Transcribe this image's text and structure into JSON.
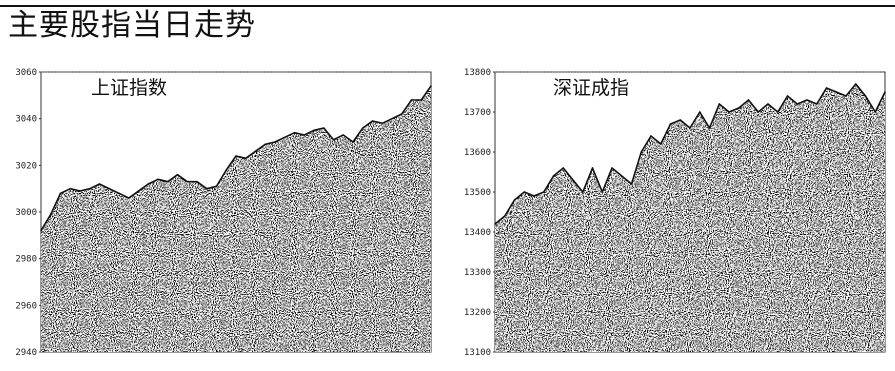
{
  "page": {
    "title": "主要股指当日走势"
  },
  "chart_data": [
    {
      "type": "area",
      "title": "上证指数",
      "xlabel": "",
      "ylabel": "",
      "ylim": [
        2940,
        3060
      ],
      "yticks": [
        3060,
        3040,
        3020,
        3000,
        2980,
        2960,
        2940
      ],
      "ytick_labels": [
        "3060",
        "3040",
        "3020",
        "3000",
        "2980",
        "2960",
        "2940"
      ],
      "grid": "top dotted line only",
      "fill": "stippled gray",
      "series": [
        {
          "x": [
            0,
            1,
            2,
            3,
            4,
            5,
            6,
            7,
            8,
            9,
            10,
            11,
            12,
            13,
            14,
            15,
            16,
            17,
            18,
            19,
            20,
            21,
            22,
            23,
            24,
            25,
            26,
            27,
            28,
            29,
            30,
            31,
            32,
            33,
            34,
            35,
            36,
            37,
            38,
            39,
            40
          ],
          "values": [
            2992,
            2999,
            3008,
            3010,
            3009,
            3010,
            3012,
            3010,
            3008,
            3006,
            3009,
            3012,
            3014,
            3013,
            3016,
            3013,
            3013,
            3010,
            3011,
            3018,
            3024,
            3023,
            3026,
            3029,
            3030,
            3032,
            3034,
            3033,
            3035,
            3036,
            3031,
            3033,
            3030,
            3036,
            3039,
            3038,
            3040,
            3042,
            3048,
            3048,
            3054
          ]
        }
      ]
    },
    {
      "type": "area",
      "title": "深证成指",
      "xlabel": "",
      "ylabel": "",
      "ylim": [
        13100,
        13800
      ],
      "yticks": [
        13800,
        13700,
        13600,
        13500,
        13400,
        13300,
        13200,
        13100
      ],
      "ytick_labels": [
        "13800",
        "13700",
        "13600",
        "13500",
        "13400",
        "13300",
        "13200",
        "13100"
      ],
      "grid": "top dotted line only",
      "fill": "stippled gray",
      "series": [
        {
          "x": [
            0,
            1,
            2,
            3,
            4,
            5,
            6,
            7,
            8,
            9,
            10,
            11,
            12,
            13,
            14,
            15,
            16,
            17,
            18,
            19,
            20,
            21,
            22,
            23,
            24,
            25,
            26,
            27,
            28,
            29,
            30,
            31,
            32,
            33,
            34,
            35,
            36,
            37,
            38,
            39,
            40
          ],
          "values": [
            13420,
            13440,
            13480,
            13500,
            13490,
            13500,
            13540,
            13560,
            13530,
            13500,
            13560,
            13500,
            13560,
            13540,
            13520,
            13600,
            13640,
            13620,
            13670,
            13680,
            13660,
            13700,
            13660,
            13720,
            13700,
            13710,
            13730,
            13700,
            13720,
            13700,
            13740,
            13720,
            13730,
            13720,
            13760,
            13750,
            13740,
            13770,
            13740,
            13700,
            13750
          ]
        }
      ]
    }
  ]
}
